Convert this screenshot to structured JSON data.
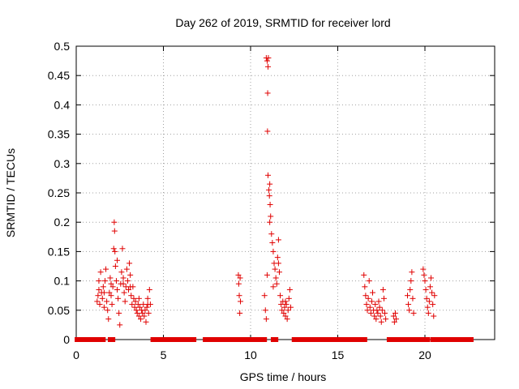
{
  "chart_data": {
    "type": "scatter",
    "title": "Day 262 of 2019, SRMTID for receiver lord",
    "xlabel": "GPS time / hours",
    "ylabel": "SRMTID / TECUs",
    "xlim": [
      0,
      24
    ],
    "ylim": [
      0,
      0.5
    ],
    "xticks": [
      0,
      5,
      10,
      15,
      20
    ],
    "xtick_labels": [
      "0",
      "5",
      "10",
      "15",
      "20"
    ],
    "yticks": [
      0,
      0.05,
      0.1,
      0.15,
      0.2,
      0.25,
      0.3,
      0.35,
      0.4,
      0.45,
      0.5
    ],
    "ytick_labels": [
      "0",
      "0.05",
      "0.1",
      "0.15",
      "0.2",
      "0.25",
      "0.3",
      "0.35",
      "0.4",
      "0.45",
      "0.5"
    ],
    "grid": true,
    "marker": "+",
    "color": "#e00000",
    "series": [
      {
        "name": "SRMTID",
        "points": [
          [
            1.2,
            0.065
          ],
          [
            1.25,
            0.075
          ],
          [
            1.3,
            0.085
          ],
          [
            1.35,
            0.06
          ],
          [
            1.4,
            0.115
          ],
          [
            1.45,
            0.08
          ],
          [
            1.5,
            0.07
          ],
          [
            1.55,
            0.09
          ],
          [
            1.6,
            0.055
          ],
          [
            1.65,
            0.1
          ],
          [
            1.7,
            0.12
          ],
          [
            1.75,
            0.065
          ],
          [
            1.8,
            0.05
          ],
          [
            1.85,
            0.035
          ],
          [
            1.9,
            0.08
          ],
          [
            1.95,
            0.105
          ],
          [
            2.0,
            0.075
          ],
          [
            2.05,
            0.06
          ],
          [
            2.1,
            0.09
          ],
          [
            2.15,
            0.155
          ],
          [
            2.18,
            0.2
          ],
          [
            2.2,
            0.185
          ],
          [
            2.22,
            0.15
          ],
          [
            2.25,
            0.125
          ],
          [
            2.3,
            0.1
          ],
          [
            2.35,
            0.085
          ],
          [
            2.4,
            0.07
          ],
          [
            2.45,
            0.045
          ],
          [
            2.5,
            0.025
          ],
          [
            2.55,
            0.095
          ],
          [
            2.6,
            0.115
          ],
          [
            2.65,
            0.155
          ],
          [
            2.7,
            0.105
          ],
          [
            2.75,
            0.08
          ],
          [
            2.8,
            0.065
          ],
          [
            2.85,
            0.09
          ],
          [
            2.9,
            0.12
          ],
          [
            2.95,
            0.1
          ],
          [
            3.0,
            0.085
          ],
          [
            3.05,
            0.13
          ],
          [
            3.1,
            0.11
          ],
          [
            3.15,
            0.075
          ],
          [
            3.2,
            0.06
          ],
          [
            3.25,
            0.09
          ],
          [
            3.3,
            0.07
          ],
          [
            3.35,
            0.055
          ],
          [
            3.4,
            0.065
          ],
          [
            3.45,
            0.05
          ],
          [
            3.5,
            0.045
          ],
          [
            3.55,
            0.06
          ],
          [
            3.6,
            0.04
          ],
          [
            3.65,
            0.055
          ],
          [
            3.7,
            0.035
          ],
          [
            3.75,
            0.05
          ],
          [
            3.8,
            0.045
          ],
          [
            3.85,
            0.06
          ],
          [
            3.9,
            0.04
          ],
          [
            3.95,
            0.05
          ],
          [
            4.0,
            0.03
          ],
          [
            4.05,
            0.055
          ],
          [
            4.1,
            0.07
          ],
          [
            4.15,
            0.045
          ],
          [
            4.2,
            0.085
          ],
          [
            4.25,
            0.06
          ],
          [
            1.3,
            0.1
          ],
          [
            1.6,
            0.08
          ],
          [
            2.0,
            0.095
          ],
          [
            2.35,
            0.135
          ],
          [
            2.7,
            0.095
          ],
          [
            3.1,
            0.09
          ],
          [
            3.6,
            0.07
          ],
          [
            4.1,
            0.06
          ],
          [
            9.3,
            0.11
          ],
          [
            9.32,
            0.095
          ],
          [
            9.35,
            0.075
          ],
          [
            9.38,
            0.045
          ],
          [
            9.4,
            0.105
          ],
          [
            9.42,
            0.065
          ],
          [
            10.9,
            0.48
          ],
          [
            10.95,
            0.475
          ],
          [
            11.0,
            0.465
          ],
          [
            11.02,
            0.48
          ],
          [
            10.98,
            0.42
          ],
          [
            10.97,
            0.355
          ],
          [
            11.0,
            0.28
          ],
          [
            11.05,
            0.255
          ],
          [
            11.08,
            0.245
          ],
          [
            11.1,
            0.265
          ],
          [
            11.12,
            0.23
          ],
          [
            11.15,
            0.21
          ],
          [
            11.2,
            0.18
          ],
          [
            11.25,
            0.165
          ],
          [
            11.3,
            0.15
          ],
          [
            11.35,
            0.13
          ],
          [
            11.4,
            0.12
          ],
          [
            11.45,
            0.105
          ],
          [
            11.5,
            0.095
          ],
          [
            11.55,
            0.14
          ],
          [
            11.6,
            0.17
          ],
          [
            11.65,
            0.115
          ],
          [
            11.7,
            0.075
          ],
          [
            11.75,
            0.06
          ],
          [
            11.8,
            0.05
          ],
          [
            11.85,
            0.065
          ],
          [
            11.9,
            0.045
          ],
          [
            11.95,
            0.055
          ],
          [
            12.0,
            0.04
          ],
          [
            12.05,
            0.06
          ],
          [
            12.1,
            0.035
          ],
          [
            12.15,
            0.05
          ],
          [
            12.2,
            0.07
          ],
          [
            12.25,
            0.085
          ],
          [
            12.3,
            0.055
          ],
          [
            10.8,
            0.075
          ],
          [
            10.85,
            0.05
          ],
          [
            10.9,
            0.035
          ],
          [
            10.95,
            0.11
          ],
          [
            11.1,
            0.2
          ],
          [
            11.3,
            0.09
          ],
          [
            11.6,
            0.13
          ],
          [
            12.0,
            0.065
          ],
          [
            16.5,
            0.11
          ],
          [
            16.55,
            0.09
          ],
          [
            16.6,
            0.075
          ],
          [
            16.65,
            0.06
          ],
          [
            16.7,
            0.05
          ],
          [
            16.75,
            0.07
          ],
          [
            16.8,
            0.1
          ],
          [
            16.85,
            0.055
          ],
          [
            16.9,
            0.045
          ],
          [
            16.95,
            0.065
          ],
          [
            17.0,
            0.08
          ],
          [
            17.05,
            0.05
          ],
          [
            17.1,
            0.04
          ],
          [
            17.15,
            0.06
          ],
          [
            17.2,
            0.035
          ],
          [
            17.25,
            0.05
          ],
          [
            17.3,
            0.045
          ],
          [
            17.35,
            0.065
          ],
          [
            17.4,
            0.055
          ],
          [
            17.45,
            0.04
          ],
          [
            17.5,
            0.03
          ],
          [
            17.55,
            0.05
          ],
          [
            17.6,
            0.085
          ],
          [
            17.65,
            0.07
          ],
          [
            17.7,
            0.045
          ],
          [
            17.75,
            0.035
          ],
          [
            18.2,
            0.04
          ],
          [
            18.25,
            0.03
          ],
          [
            18.3,
            0.045
          ],
          [
            18.35,
            0.035
          ],
          [
            19.0,
            0.075
          ],
          [
            19.05,
            0.06
          ],
          [
            19.1,
            0.05
          ],
          [
            19.15,
            0.085
          ],
          [
            19.2,
            0.1
          ],
          [
            19.25,
            0.115
          ],
          [
            19.3,
            0.07
          ],
          [
            19.35,
            0.045
          ],
          [
            19.9,
            0.12
          ],
          [
            19.95,
            0.11
          ],
          [
            20.0,
            0.1
          ],
          [
            20.05,
            0.085
          ],
          [
            20.1,
            0.07
          ],
          [
            20.15,
            0.055
          ],
          [
            20.2,
            0.045
          ],
          [
            20.25,
            0.065
          ],
          [
            20.3,
            0.09
          ],
          [
            20.35,
            0.105
          ],
          [
            20.4,
            0.08
          ],
          [
            20.45,
            0.06
          ],
          [
            20.5,
            0.04
          ],
          [
            20.55,
            0.075
          ]
        ]
      }
    ],
    "zero_bands": [
      [
        0.05,
        1.2
      ],
      [
        1.4,
        1.55
      ],
      [
        1.95,
        2.1
      ],
      [
        4.4,
        6.75
      ],
      [
        7.4,
        10.8
      ],
      [
        11.3,
        11.45
      ],
      [
        12.5,
        16.55
      ],
      [
        17.95,
        18.5
      ],
      [
        18.75,
        19.3
      ],
      [
        19.55,
        20.15
      ],
      [
        20.45,
        22.65
      ]
    ]
  }
}
